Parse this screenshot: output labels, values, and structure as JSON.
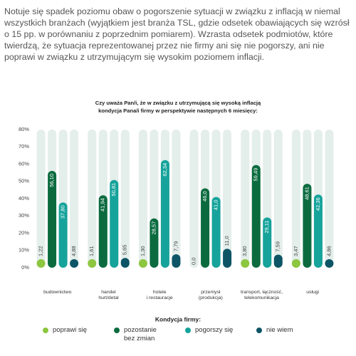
{
  "paragraph": "Notuje się spadek poziomu obaw o pogorszenie sytuacji w związku z inflacją w niemal wszystkich branżach (wyjątkiem jest branża TSL, gdzie odsetek obawiających się wzrósł o 15 pp. w porównaniu z poprzednim pomiarem). Wzrasta odsetek podmiotów, które twierdzą, że sytuacja reprezentowanej przez nie firmy ani się nie pogorszy, ani nie poprawi w związku z utrzymującym się wysokim poziomem inflacji.",
  "chart_data": {
    "type": "bar",
    "title": "Czy uważa Pan/i, że w związku z utrzymującą się wysoką inflacją kondycja Pana/i firmy w perspektywie następnych 6 miesięcy:",
    "categories": [
      [
        "budownictwo"
      ],
      [
        "handel",
        "hurt/detal"
      ],
      [
        "hotele",
        "i restauracje"
      ],
      [
        "przemysł",
        "(produkcja)"
      ],
      [
        "transport, łączność,",
        "telekomunikacja"
      ],
      [
        "usługi"
      ]
    ],
    "legend_title": "Kondycja firmy:",
    "series": [
      {
        "name": "poprawi się",
        "color": "#8dc63f",
        "values": [
          1.22,
          1.61,
          1.3,
          0.0,
          3.8,
          3.47
        ],
        "value_labels": [
          "1,22",
          "1,61",
          "1,30",
          "0,0",
          "3,80",
          "3,47"
        ]
      },
      {
        "name": "pozostanie bez zmian",
        "color": "#0b6b3f",
        "values": [
          56.1,
          41.94,
          28.57,
          46.0,
          59.49,
          48.61
        ],
        "value_labels": [
          "56,10",
          "41,94",
          "28,57",
          "46,0",
          "59,49",
          "48,61"
        ]
      },
      {
        "name": "pogorszy się",
        "color": "#16a39b",
        "values": [
          37.8,
          50.81,
          62.34,
          41.0,
          29.11,
          42.36
        ],
        "value_labels": [
          "37,80",
          "50,81",
          "62,34",
          "41,0",
          "29,11",
          "42,36"
        ]
      },
      {
        "name": "nie wiem",
        "color": "#0d5566",
        "values": [
          4.88,
          5.65,
          7.79,
          11.0,
          7.59,
          4.86
        ],
        "value_labels": [
          "4,88",
          "5,65",
          "7,79",
          "11,0",
          "7,59",
          "4,86"
        ]
      }
    ],
    "ylim": [
      0,
      80
    ],
    "yticks": [
      {
        "value": 0,
        "label": "0%"
      },
      {
        "value": 10,
        "label": "10%"
      },
      {
        "value": 20,
        "label": "20%"
      },
      {
        "value": 30,
        "label": "30%"
      },
      {
        "value": 40,
        "label": "40%"
      },
      {
        "value": 50,
        "label": "50%"
      },
      {
        "value": 60,
        "label": "60%"
      },
      {
        "value": 70,
        "label": "70%"
      },
      {
        "value": 80,
        "label": "80%"
      }
    ]
  }
}
